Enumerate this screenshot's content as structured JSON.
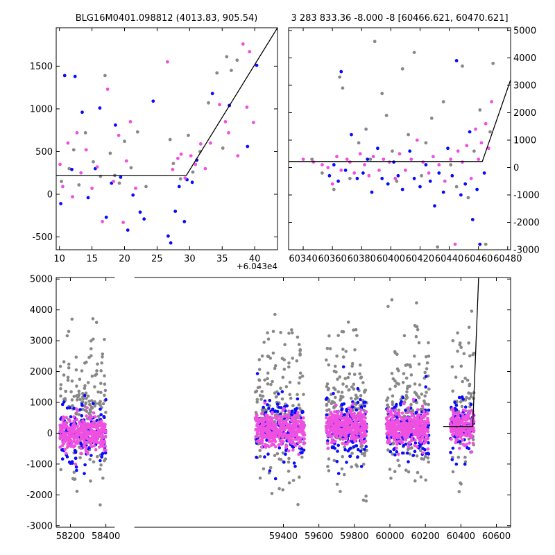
{
  "figure": {
    "background": "#ffffff",
    "point_colors": {
      "gray": "#888888",
      "blue": "#0a0aff",
      "pink": "#f050e0"
    },
    "fit_line_color": "#000000"
  },
  "chart_data": [
    {
      "type": "scatter",
      "title": "BLG16M0401.098812 (4013.83, 905.54)",
      "xlabel": "",
      "ylabel": "",
      "xlim": [
        9.5,
        43.5
      ],
      "ylim": [
        -650,
        1950
      ],
      "xticks": [
        10,
        15,
        20,
        25,
        30,
        35,
        40
      ],
      "xtick_labels": [
        "10",
        "15",
        "20",
        "25",
        "30",
        "35",
        "40"
      ],
      "yticks": [
        -500,
        0,
        500,
        1000,
        1500
      ],
      "ytick_labels": [
        "-500",
        "0",
        "500",
        "1000",
        "1500"
      ],
      "x_offset_label": "+6.043e4",
      "grid": false,
      "series": [
        {
          "color": "gray",
          "x": [
            10.3,
            11.5,
            12.2,
            13.0,
            14.0,
            15.2,
            16.3,
            17.0,
            17.8,
            18.5,
            19.2,
            20.0,
            21.0,
            22.0,
            23.3,
            27.0,
            27.5,
            28.6,
            29.8,
            30.5,
            31.6,
            32.9,
            34.2,
            35.1,
            35.7,
            36.4,
            37.3
          ],
          "y": [
            150,
            300,
            520,
            110,
            720,
            380,
            210,
            1390,
            480,
            220,
            130,
            620,
            310,
            730,
            90,
            640,
            360,
            180,
            690,
            260,
            500,
            1070,
            1420,
            540,
            1610,
            1450,
            1570
          ]
        },
        {
          "color": "blue",
          "x": [
            10.2,
            10.8,
            11.9,
            12.4,
            13.5,
            14.4,
            15.5,
            16.2,
            17.2,
            18.0,
            18.6,
            19.4,
            20.5,
            21.3,
            22.4,
            23.0,
            24.4,
            26.7,
            27.1,
            27.8,
            28.4,
            29.2,
            29.6,
            30.4,
            31.1,
            33.5,
            36.1,
            38.9,
            40.3
          ],
          "y": [
            -110,
            1390,
            290,
            1380,
            960,
            -40,
            300,
            1010,
            -270,
            130,
            810,
            200,
            -420,
            -10,
            -210,
            -290,
            1090,
            -490,
            -570,
            -200,
            90,
            -320,
            170,
            140,
            400,
            1180,
            1040,
            560,
            1510
          ]
        },
        {
          "color": "pink",
          "x": [
            10.1,
            10.5,
            11.3,
            12.0,
            12.7,
            13.3,
            14.1,
            15.0,
            15.8,
            16.6,
            17.4,
            18.3,
            19.1,
            19.8,
            20.3,
            20.9,
            21.7,
            26.6,
            27.4,
            28.2,
            28.7,
            29.3,
            30.2,
            30.9,
            31.7,
            32.4,
            33.2,
            34.6,
            35.5,
            36.0,
            37.4,
            38.2,
            38.8,
            39.2,
            39.8
          ],
          "y": [
            350,
            90,
            600,
            -30,
            720,
            250,
            520,
            70,
            320,
            -320,
            1230,
            150,
            690,
            -330,
            390,
            850,
            70,
            1550,
            290,
            420,
            470,
            190,
            450,
            350,
            590,
            300,
            600,
            1050,
            850,
            720,
            450,
            1760,
            1020,
            1670,
            840
          ]
        }
      ],
      "fit_line": {
        "x": [
          9.5,
          29.5,
          43.5
        ],
        "y": [
          220,
          220,
          1950
        ]
      }
    },
    {
      "type": "scatter",
      "title": "3 283 833.36 -8.000 -8 [60466.621, 60470.621]",
      "xlabel": "",
      "ylabel": "",
      "xlim": [
        60330,
        60482
      ],
      "ylim": [
        -3000,
        5100
      ],
      "xticks": [
        60340,
        60360,
        60380,
        60400,
        60420,
        60440,
        60460,
        60480
      ],
      "xtick_labels": [
        "60340",
        "60360",
        "60380",
        "60400",
        "60420",
        "60440",
        "60460",
        "60480"
      ],
      "yticks": [
        -3000,
        -2000,
        -1000,
        0,
        1000,
        2000,
        3000,
        4000,
        5000
      ],
      "ytick_labels": [
        "-3000",
        "-2000",
        "-1000",
        "0",
        "1000",
        "2000",
        "3000",
        "4000",
        "5000"
      ],
      "y_axis_side": "right",
      "grid": false,
      "series": [
        {
          "color": "gray",
          "x": [
            60346,
            60353,
            60361,
            60365,
            60367,
            60372,
            60378,
            60383,
            60386,
            60389,
            60394,
            60397,
            60401,
            60404,
            60408,
            60412,
            60416,
            60421,
            60424,
            60428,
            60432,
            60436,
            60441,
            60445,
            60449,
            60453,
            60457,
            60461,
            60465,
            60468,
            60470
          ],
          "y": [
            300,
            -200,
            -800,
            3300,
            2900,
            -400,
            900,
            1400,
            300,
            4600,
            2700,
            1900,
            600,
            -500,
            3600,
            1200,
            4200,
            -300,
            900,
            1800,
            -2900,
            2400,
            100,
            -700,
            3700,
            -1100,
            600,
            2100,
            -2800,
            1300,
            3800
          ]
        },
        {
          "color": "blue",
          "x": [
            60358,
            60361,
            60364,
            60366,
            60369,
            60373,
            60377,
            60381,
            60384,
            60387,
            60391,
            60394,
            60398,
            60402,
            60405,
            60408,
            60413,
            60416,
            60420,
            60424,
            60427,
            60430,
            60433,
            60436,
            60439,
            60442,
            60445,
            60448,
            60451,
            60454,
            60456,
            60459,
            60461,
            60464
          ],
          "y": [
            -300,
            100,
            -500,
            3500,
            -100,
            1200,
            -400,
            -200,
            300,
            -900,
            700,
            -400,
            -600,
            200,
            -300,
            -800,
            600,
            -400,
            -700,
            100,
            -500,
            -1400,
            -200,
            -900,
            700,
            -300,
            3900,
            -1000,
            -600,
            1300,
            -1900,
            -800,
            -2800,
            -200
          ]
        },
        {
          "color": "pink",
          "x": [
            60340,
            60347,
            60353,
            60357,
            60360,
            60363,
            60366,
            60370,
            60372,
            60375,
            60379,
            60382,
            60385,
            60388,
            60392,
            60395,
            60399,
            60403,
            60406,
            60410,
            60414,
            60418,
            60422,
            60426,
            60429,
            60433,
            60437,
            60441,
            60444,
            60446,
            60449,
            60452,
            60455,
            60458,
            60460,
            60462,
            60465,
            60467,
            60469
          ],
          "y": [
            300,
            200,
            100,
            0,
            -600,
            400,
            -100,
            300,
            200,
            -200,
            500,
            100,
            -300,
            400,
            -100,
            300,
            200,
            -400,
            500,
            -100,
            300,
            1000,
            200,
            -200,
            400,
            100,
            -500,
            300,
            -2800,
            600,
            200,
            800,
            -400,
            1400,
            300,
            900,
            1600,
            700,
            2400
          ]
        }
      ],
      "fit_line": {
        "x": [
          60330,
          60462.6,
          60482
        ],
        "y": [
          220,
          220,
          3200
        ]
      }
    },
    {
      "type": "scatter",
      "title": "",
      "xlabel": "",
      "ylabel": "",
      "xlim": [
        58120,
        60680
      ],
      "ylim": [
        -3050,
        5050
      ],
      "xticks": [
        58200,
        58400,
        59400,
        59600,
        59800,
        60000,
        60200,
        60400,
        60600
      ],
      "xtick_labels": [
        "58200",
        "58400",
        "59400",
        "59600",
        "59800",
        "60000",
        "60200",
        "60400",
        "60600"
      ],
      "yticks": [
        -3000,
        -2000,
        -1000,
        0,
        1000,
        2000,
        3000,
        4000,
        5000
      ],
      "ytick_labels": [
        "-3000",
        "-2000",
        "-1000",
        "0",
        "1000",
        "2000",
        "3000",
        "4000",
        "5000"
      ],
      "x_axis_break": [
        58450,
        58560
      ],
      "grid": false,
      "seasons": [
        {
          "x0": 58140,
          "x1": 58400,
          "center": 0
        },
        {
          "x0": 59240,
          "x1": 59520,
          "center": 150
        },
        {
          "x0": 59640,
          "x1": 59870,
          "center": 200
        },
        {
          "x0": 59980,
          "x1": 60220,
          "center": 150
        },
        {
          "x0": 60340,
          "x1": 60475,
          "center": 200
        }
      ],
      "fit_line": {
        "x": [
          60300,
          60466.6,
          60500
        ],
        "y": [
          220,
          220,
          5050
        ]
      }
    }
  ]
}
